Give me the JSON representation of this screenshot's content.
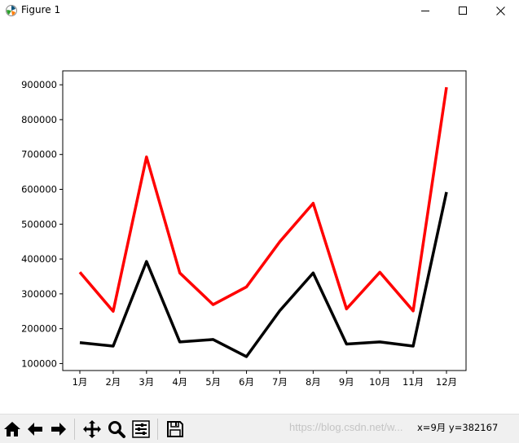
{
  "window": {
    "title": "Figure 1",
    "icon": "matplotlib-icon",
    "controls": [
      "minimize-icon",
      "maximize-icon",
      "close-icon"
    ]
  },
  "toolbar": {
    "buttons": [
      {
        "name": "home-button",
        "icon": "home-icon"
      },
      {
        "name": "back-button",
        "icon": "arrow-left-icon"
      },
      {
        "name": "forward-button",
        "icon": "arrow-right-icon"
      },
      {
        "name": "pan-button",
        "icon": "move-icon"
      },
      {
        "name": "zoom-button",
        "icon": "magnifier-icon"
      },
      {
        "name": "configure-subplots-button",
        "icon": "sliders-icon"
      },
      {
        "name": "save-button",
        "icon": "floppy-disk-icon"
      }
    ],
    "coordinates": "x=9月 y=382167",
    "watermark": "https://blog.csdn.net/w..."
  },
  "chart_data": {
    "type": "line",
    "categories": [
      "1月",
      "2月",
      "3月",
      "4月",
      "5月",
      "6月",
      "7月",
      "8月",
      "9月",
      "10月",
      "11月",
      "12月"
    ],
    "series": [
      {
        "color": "#ff0000",
        "values": [
          362000,
          250000,
          693000,
          360000,
          269000,
          320000,
          450000,
          560000,
          257000,
          362000,
          251000,
          893000
        ]
      },
      {
        "color": "#000000",
        "values": [
          160000,
          150000,
          393000,
          162000,
          169000,
          120000,
          252000,
          360000,
          156000,
          162000,
          150000,
          592000
        ]
      }
    ],
    "ylim": [
      80000,
      940000
    ],
    "yticks": [
      100000,
      200000,
      300000,
      400000,
      500000,
      600000,
      700000,
      800000,
      900000
    ],
    "ytick_labels": [
      "100000",
      "200000",
      "300000",
      "400000",
      "500000",
      "600000",
      "700000",
      "800000",
      "900000"
    ],
    "title": "",
    "xlabel": "",
    "ylabel": "",
    "grid": false
  }
}
